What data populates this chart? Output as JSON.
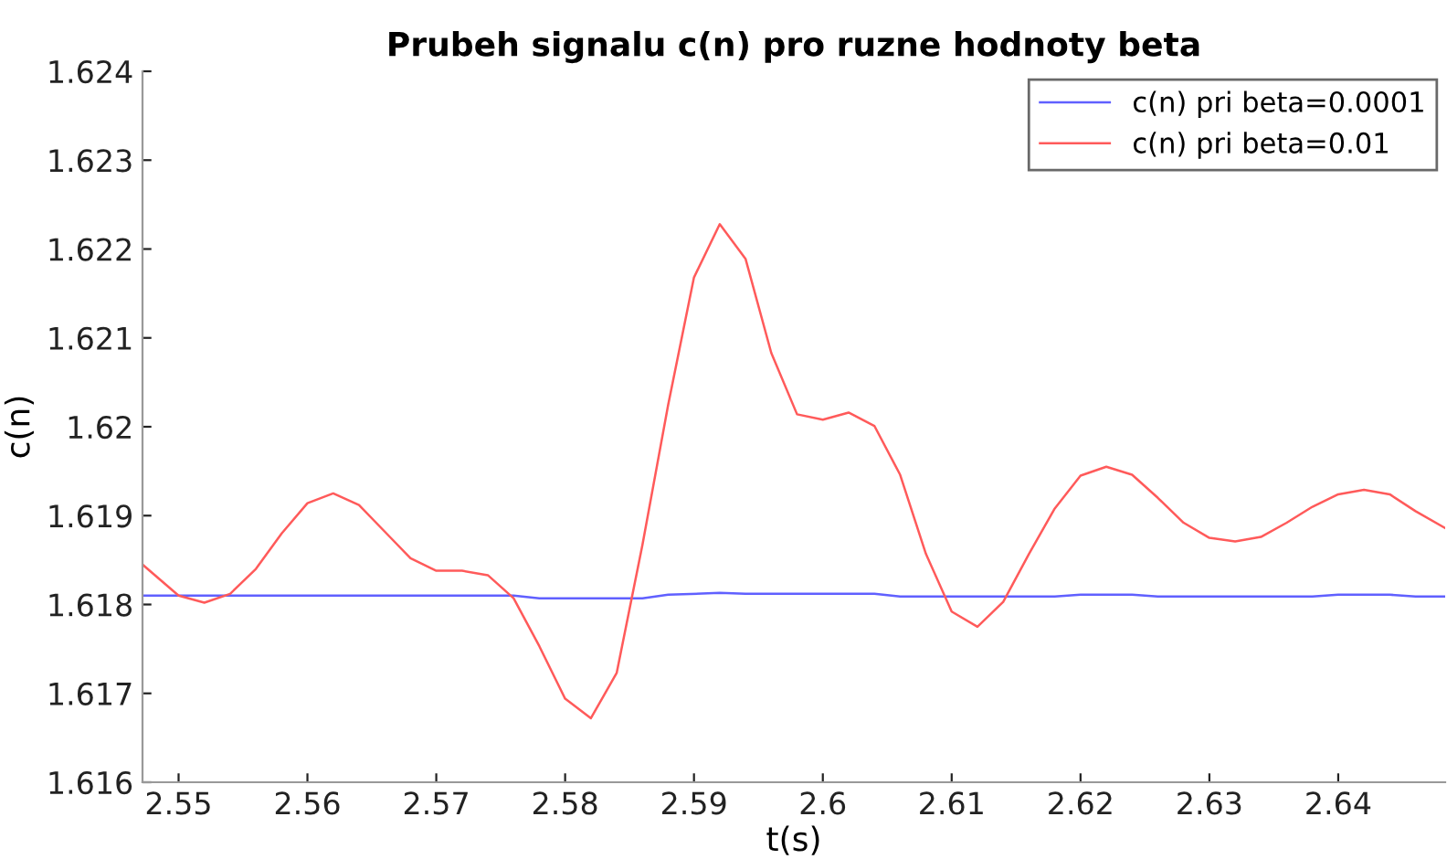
{
  "chart_data": {
    "type": "line",
    "title": "Prubeh signalu c(n) pro ruzne hodnoty beta",
    "xlabel": "t(s)",
    "ylabel": "c(n)",
    "xlim": [
      2.5472,
      2.6483
    ],
    "xticks": [
      2.55,
      2.56,
      2.57,
      2.58,
      2.59,
      2.6,
      2.61,
      2.62,
      2.63,
      2.64
    ],
    "ylim": [
      1.616,
      1.624
    ],
    "yticks": [
      1.616,
      1.617,
      1.618,
      1.619,
      1.62,
      1.621,
      1.622,
      1.623,
      1.624
    ],
    "grid": false,
    "legend": "top right",
    "line_style": "solid",
    "marker": "none",
    "series": [
      {
        "name": "c(n) pri beta=0.0001",
        "color": "#6060ff",
        "x": [
          2.5472,
          2.576,
          2.578,
          2.586,
          2.588,
          2.592,
          2.594,
          2.604,
          2.606,
          2.618,
          2.62,
          2.624,
          2.626,
          2.638,
          2.64,
          2.644,
          2.646,
          2.6483
        ],
        "values": [
          1.6181,
          1.6181,
          1.61807,
          1.61807,
          1.61811,
          1.61813,
          1.61812,
          1.61812,
          1.61809,
          1.61809,
          1.61811,
          1.61811,
          1.61809,
          1.61809,
          1.61811,
          1.61811,
          1.61809,
          1.61809
        ]
      },
      {
        "name": "c(n) pri beta=0.01",
        "color": "#ff5a5a",
        "x": [
          2.5472,
          2.55,
          2.552,
          2.554,
          2.556,
          2.558,
          2.56,
          2.562,
          2.564,
          2.566,
          2.568,
          2.57,
          2.572,
          2.574,
          2.576,
          2.578,
          2.58,
          2.582,
          2.584,
          2.586,
          2.588,
          2.59,
          2.592,
          2.594,
          2.596,
          2.598,
          2.6,
          2.602,
          2.604,
          2.606,
          2.608,
          2.61,
          2.612,
          2.614,
          2.616,
          2.618,
          2.62,
          2.622,
          2.624,
          2.626,
          2.628,
          2.63,
          2.632,
          2.634,
          2.636,
          2.638,
          2.64,
          2.642,
          2.644,
          2.646,
          2.6483
        ],
        "values": [
          1.61845,
          1.6181,
          1.61802,
          1.61812,
          1.6184,
          1.6188,
          1.61914,
          1.61925,
          1.61912,
          1.61882,
          1.61852,
          1.61838,
          1.61838,
          1.61833,
          1.61807,
          1.61753,
          1.61694,
          1.61672,
          1.61723,
          1.61867,
          1.62025,
          1.62168,
          1.62228,
          1.62189,
          1.62083,
          1.62014,
          1.62008,
          1.62016,
          1.62001,
          1.61946,
          1.61857,
          1.61792,
          1.61775,
          1.61803,
          1.61857,
          1.61908,
          1.61945,
          1.61955,
          1.61946,
          1.6192,
          1.61892,
          1.61875,
          1.61871,
          1.61876,
          1.61892,
          1.6191,
          1.61924,
          1.61929,
          1.61924,
          1.61905,
          1.61886
        ]
      }
    ]
  }
}
